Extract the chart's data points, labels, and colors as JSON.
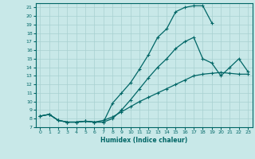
{
  "xlabel": "Humidex (Indice chaleur)",
  "bg_color": "#c8e8e8",
  "line_color": "#006666",
  "grid_color": "#a8d0d0",
  "xlim": [
    -0.5,
    23.5
  ],
  "ylim": [
    7,
    21.5
  ],
  "yticks": [
    7,
    8,
    9,
    10,
    11,
    12,
    13,
    14,
    15,
    16,
    17,
    18,
    19,
    20,
    21
  ],
  "xticks": [
    0,
    1,
    2,
    3,
    4,
    5,
    6,
    7,
    8,
    9,
    10,
    11,
    12,
    13,
    14,
    15,
    16,
    17,
    18,
    19,
    20,
    21,
    22,
    23
  ],
  "curve1_x": [
    0,
    1,
    2,
    3,
    4,
    5,
    6,
    7,
    8,
    9,
    10,
    11,
    12,
    13,
    14,
    15,
    16,
    17,
    18,
    19
  ],
  "curve1_y": [
    8.3,
    8.5,
    7.8,
    7.6,
    7.6,
    7.7,
    7.6,
    7.6,
    9.8,
    11.0,
    12.2,
    13.8,
    15.5,
    17.5,
    18.5,
    20.5,
    21.0,
    21.2,
    21.2,
    19.2
  ],
  "curve2_x": [
    0,
    1,
    2,
    3,
    4,
    5,
    6,
    7,
    8,
    9,
    10,
    11,
    12,
    13,
    14,
    15,
    16,
    17,
    18,
    19,
    20,
    21,
    22,
    23
  ],
  "curve2_y": [
    8.3,
    8.5,
    7.8,
    7.6,
    7.6,
    7.7,
    7.6,
    7.6,
    8.0,
    9.0,
    10.2,
    11.5,
    12.8,
    14.0,
    15.0,
    16.2,
    17.0,
    17.5,
    15.0,
    14.5,
    13.0,
    14.0,
    15.0,
    13.5
  ],
  "curve3_x": [
    0,
    1,
    2,
    3,
    4,
    5,
    6,
    7,
    8,
    9,
    10,
    11,
    12,
    13,
    14,
    15,
    16,
    17,
    18,
    19,
    20,
    21,
    22,
    23
  ],
  "curve3_y": [
    8.3,
    8.5,
    7.8,
    7.6,
    7.6,
    7.7,
    7.6,
    7.8,
    8.2,
    8.8,
    9.4,
    10.0,
    10.5,
    11.0,
    11.5,
    12.0,
    12.5,
    13.0,
    13.2,
    13.3,
    13.4,
    13.3,
    13.2,
    13.2
  ]
}
